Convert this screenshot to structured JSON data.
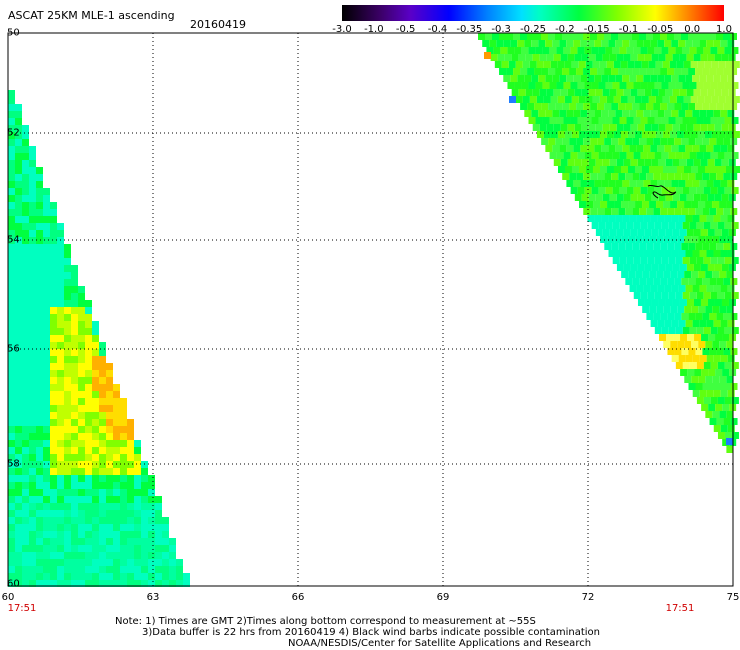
{
  "header": {
    "title": "ASCAT 25KM MLE-1 ascending",
    "date": "20160419"
  },
  "colorbar": {
    "tick_labels": [
      "-3.0",
      "-1.0",
      "-0.5",
      "-0.4",
      "-0.35",
      "-0.3",
      "-0.25",
      "-0.2",
      "-0.15",
      "-0.1",
      "-0.05",
      "0.0",
      "1.0"
    ],
    "colors": [
      "#000000",
      "#5a00c8",
      "#0000ff",
      "#0080ff",
      "#00e0ff",
      "#00ffc0",
      "#00ff40",
      "#80ff00",
      "#ffff00",
      "#ff8000",
      "#ff0000"
    ]
  },
  "map": {
    "lat_labels": [
      "50",
      "52",
      "54",
      "56",
      "58",
      "60"
    ],
    "lon_labels": [
      "60",
      "63",
      "66",
      "69",
      "72",
      "75"
    ],
    "lon_range_e": [
      60,
      75
    ],
    "lat_range_s": [
      50,
      60
    ],
    "swath_times": [
      "17:51",
      "17:51"
    ]
  },
  "notes": {
    "line1": "Note: 1) Times are GMT 2)Times along bottom correspond to measurement at ~55S",
    "line2": "3)Data buffer is 22 hrs from 20160419 4) Black wind barbs indicate possible contamination",
    "line3": "NOAA/NESDIS/Center for Satellite Applications and Research"
  }
}
